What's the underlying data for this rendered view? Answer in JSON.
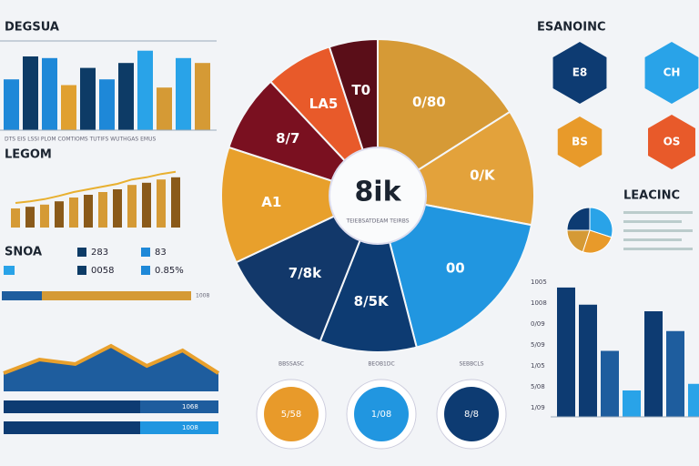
{
  "left": {
    "title": "DEGSUA",
    "bars": [
      62,
      90,
      88,
      55,
      76,
      62,
      82,
      97,
      52,
      88,
      82
    ],
    "bar_colors": [
      "#1e88d8",
      "#0d3b66",
      "#1e88d8",
      "#e0a030",
      "#0d3b66",
      "#1e88d8",
      "#0d3b66",
      "#29a3e8",
      "#d59a35",
      "#29a3e8",
      "#d59a35"
    ],
    "caption": "DTS EIS LSSI PLOM COMTIOMS TUTIFS WUTHGAS EMUS",
    "subtitle": "LEGOM",
    "gold_bars": [
      35,
      38,
      42,
      48,
      55,
      60,
      65,
      70,
      78,
      82,
      88,
      92
    ],
    "legend_title": "SNOA",
    "legend": [
      "283",
      "83",
      "0058",
      "0.85%"
    ],
    "progress_label": "1008",
    "area": [
      60,
      45,
      50,
      30,
      52,
      35,
      60
    ],
    "rows": [
      "1068",
      "1008"
    ]
  },
  "pie": {
    "center": "8ik",
    "subtitle": "TEIEBSATDEAM TEIRBS",
    "values": [
      16,
      12,
      18,
      10,
      12,
      12,
      8,
      7,
      5
    ],
    "colors": [
      "#d69a36",
      "#e3a23b",
      "#2196e0",
      "#0d3b72",
      "#12386a",
      "#e8a02c",
      "#7a1020",
      "#e85a2a",
      "#5a0e18"
    ],
    "labels": [
      "0/80",
      "0/K",
      "00",
      "8/5K",
      "7/8k",
      "A1",
      "8/7",
      "LA5",
      "T0"
    ]
  },
  "buttons": [
    {
      "caption": "BBSSASC",
      "label": "5/58",
      "color": "#e89a2a"
    },
    {
      "caption": "BEOB1DC",
      "label": "1/08",
      "color": "#2196e0"
    },
    {
      "caption": "SEBBCLS",
      "label": "8/8",
      "color": "#0d3b72"
    }
  ],
  "right": {
    "title": "ESANOINC",
    "hexes": [
      {
        "label": "E8",
        "color": "#0d3b72"
      },
      {
        "label": "CH",
        "color": "#29a3e8"
      },
      {
        "label": "BS",
        "color": "#e89a2a"
      },
      {
        "label": "OS",
        "color": "#e85a2a"
      }
    ],
    "subtitle": "LEACINC",
    "pie": [
      30,
      25,
      20,
      25
    ],
    "pie_colors": [
      "#29a3e8",
      "#e89a2a",
      "#d59a35",
      "#0d3b72"
    ],
    "bars": [
      98,
      85,
      50,
      20,
      80,
      65,
      25
    ],
    "bar_colors": [
      "#0d3b72",
      "#0d3b72",
      "#1e5d9e",
      "#29a3e8",
      "#0d3b72",
      "#1e5d9e",
      "#29a3e8"
    ],
    "axis": [
      "1005",
      "1008",
      "0/09",
      "5/09",
      "1/05",
      "5/08",
      "1/09"
    ]
  }
}
